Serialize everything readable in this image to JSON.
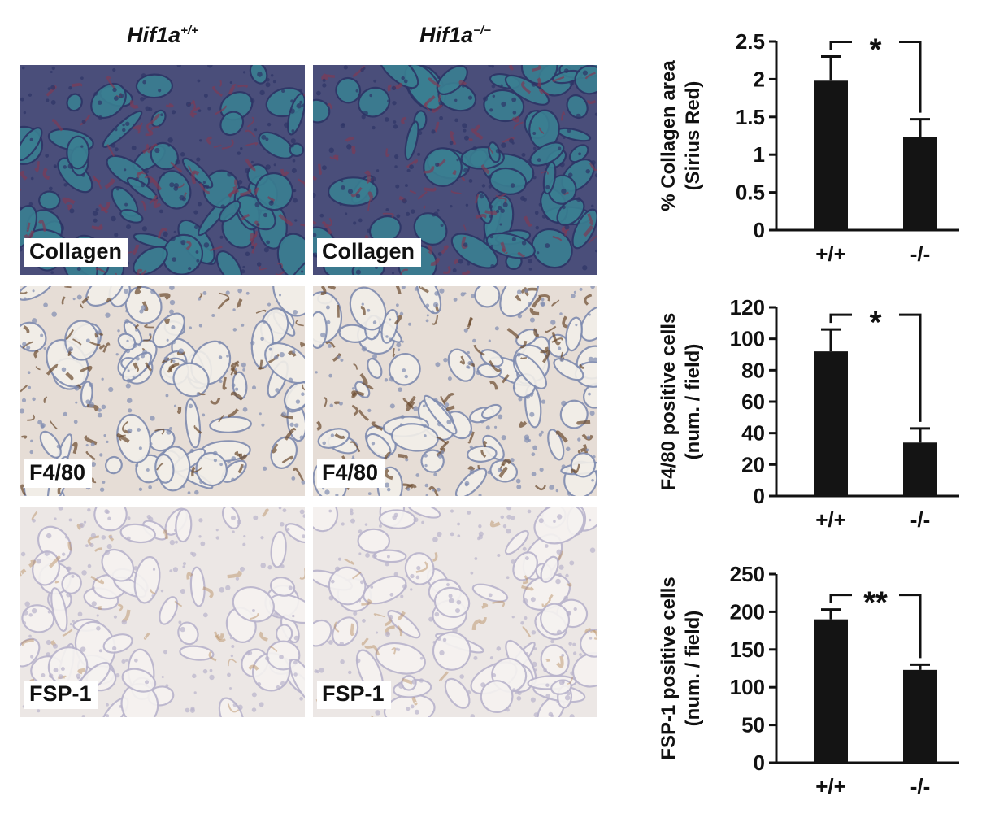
{
  "columns": {
    "wt": {
      "base": "Hif1a",
      "sup": "+/+"
    },
    "ko": {
      "base": "Hif1a",
      "sup": "−/−"
    }
  },
  "panels": [
    {
      "label": "Collagen",
      "stain": "trichrome"
    },
    {
      "label": "F4/80",
      "stain": "dab-ihc"
    },
    {
      "label": "FSP-1",
      "stain": "faint-ihc"
    }
  ],
  "colors": {
    "bar": "#141414",
    "trichrome_bg": "#4a4e7a",
    "trichrome_tubule": "#3a7f92",
    "trichrome_collagen": "#7e3a56",
    "ihc_bg": "#e6ddd6",
    "ihc_nuclei": "#7f8cb0",
    "ihc_brown": "#6b4a2e",
    "faint_bg": "#ece7e5",
    "faint_brown": "#b58a5c"
  },
  "chart_data": [
    {
      "type": "bar",
      "categories": [
        "+/+",
        "-/-"
      ],
      "values": [
        1.98,
        1.23
      ],
      "errors": [
        0.32,
        0.24
      ],
      "ylabel_line1": "% Collagen area",
      "ylabel_line2": "(Sirius Red)",
      "ylim": [
        0,
        2.5
      ],
      "yticks": [
        "0",
        "0.5",
        "1",
        "1.5",
        "2",
        "2.5"
      ],
      "significance": "*"
    },
    {
      "type": "bar",
      "categories": [
        "+/+",
        "-/-"
      ],
      "values": [
        92,
        34
      ],
      "errors": [
        14,
        9
      ],
      "ylabel_line1": "F4/80 positive cells",
      "ylabel_line2": "(num. / field)",
      "ylim": [
        0,
        120
      ],
      "yticks": [
        "0",
        "20",
        "40",
        "60",
        "80",
        "100",
        "120"
      ],
      "significance": "*"
    },
    {
      "type": "bar",
      "categories": [
        "+/+",
        "-/-"
      ],
      "values": [
        190,
        123
      ],
      "errors": [
        13,
        7
      ],
      "ylabel_line1": "FSP-1 positive  cells",
      "ylabel_line2": "(num. / field)",
      "ylim": [
        0,
        250
      ],
      "yticks": [
        "0",
        "50",
        "100",
        "150",
        "200",
        "250"
      ],
      "significance": "**"
    }
  ]
}
